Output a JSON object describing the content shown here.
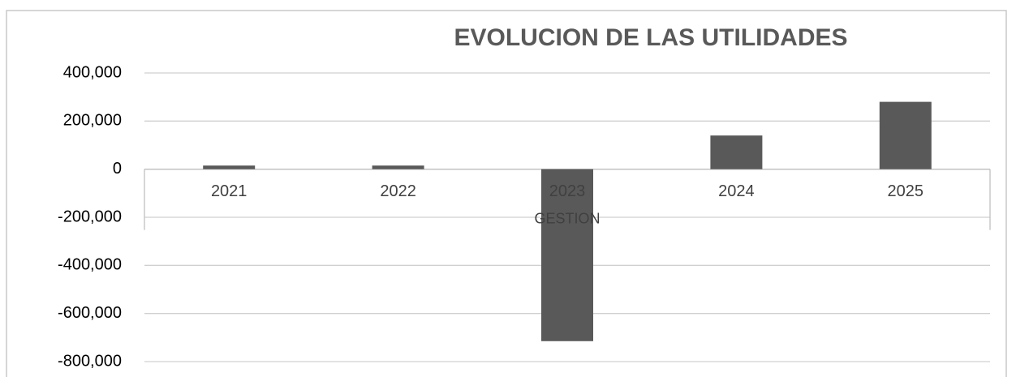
{
  "chart_data": {
    "type": "bar",
    "title": "EVOLUCION DE LAS UTILIDADES",
    "x_label": "GESTION",
    "categories": [
      "2021",
      "2022",
      "2023",
      "2024",
      "2025"
    ],
    "values": [
      15000,
      15000,
      -715000,
      140000,
      280000
    ],
    "color": "#595959",
    "ylim": [
      -800000,
      400000
    ],
    "yticks": [
      {
        "value": -800000,
        "label": "-800,000"
      },
      {
        "value": -600000,
        "label": "-600,000"
      },
      {
        "value": -400000,
        "label": "-400,000"
      },
      {
        "value": -200000,
        "label": "-200,000"
      },
      0,
      {
        "value": 200000,
        "label": "200,000"
      },
      {
        "value": 400000,
        "label": "400,000"
      }
    ],
    "grid": true
  }
}
